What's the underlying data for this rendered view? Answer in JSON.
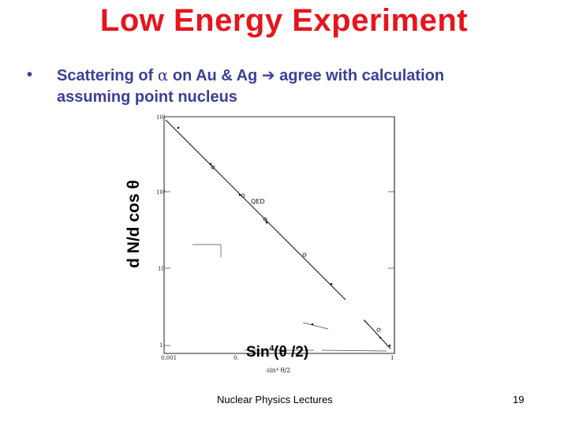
{
  "slide": {
    "title": "Low Energy Experiment",
    "bullet": {
      "dot": "•",
      "text_before": "Scattering of ",
      "alpha_symbol": "α",
      "text_middle": " on Au & Ag ",
      "arrow_symbol": "➔",
      "text_after": " agree with calculation",
      "line2": "assuming point nucleus"
    },
    "footer_left": "Nuclear Physics Lectures",
    "page_number": "19"
  },
  "figure": {
    "ylabel": "d N/d cos θ",
    "xlabel_prefix": "Sin",
    "xlabel_exp": "4",
    "xlabel_suffix": "(θ /2)",
    "small_xlabel": "sin⁴ θ/2",
    "qed_label": "QED",
    "y_ticks": [
      "10³",
      "10²",
      "10",
      "1"
    ],
    "x_ticks": [
      "0.001",
      "0.",
      "1"
    ]
  },
  "chart_data": {
    "type": "scatter",
    "x_scale": "log",
    "y_scale": "log",
    "x_tick_labels": [
      "0.001",
      "1"
    ],
    "y_tick_labels": [
      "10³",
      "10²",
      "10",
      "1"
    ],
    "series": [
      {
        "name": "QED",
        "kind": "line",
        "x": [
          0.001,
          1
        ],
        "y": [
          1000,
          1
        ]
      }
    ]
  }
}
